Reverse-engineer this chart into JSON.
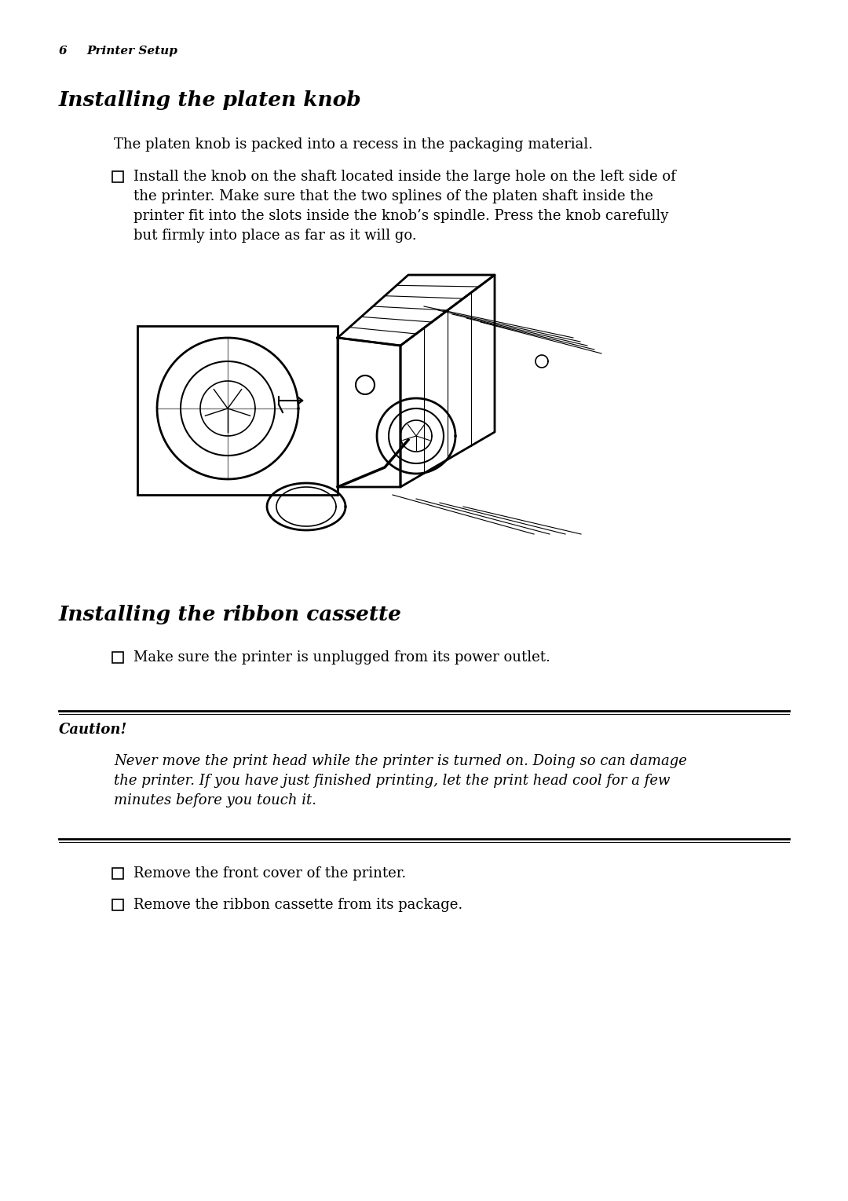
{
  "background_color": "#ffffff",
  "page_number": "6",
  "page_header": "Printer Setup",
  "section1_title": "Installing the platen knob",
  "section1_body": "The platen knob is packed into a recess in the packaging material.",
  "section1_bullet": "Install the knob on the shaft located inside the large hole on the left side of\nthe printer. Make sure that the two splines of the platen shaft inside the\nprinter fit into the slots inside the knob’s spindle. Press the knob carefully\nbut firmly into place as far as it will go.",
  "section2_title": "Installing the ribbon cassette",
  "section2_bullet1": "Make sure the printer is unplugged from its power outlet.",
  "caution_label": "Caution!",
  "caution_text": "Never move the print head while the printer is turned on. Doing so can damage\nthe printer. If you have just finished printing, let the print head cool for a few\nminutes before you touch it.",
  "section2_bullet2": "Remove the front cover of the printer.",
  "section2_bullet3": "Remove the ribbon cassette from its package.",
  "text_color": "#000000"
}
